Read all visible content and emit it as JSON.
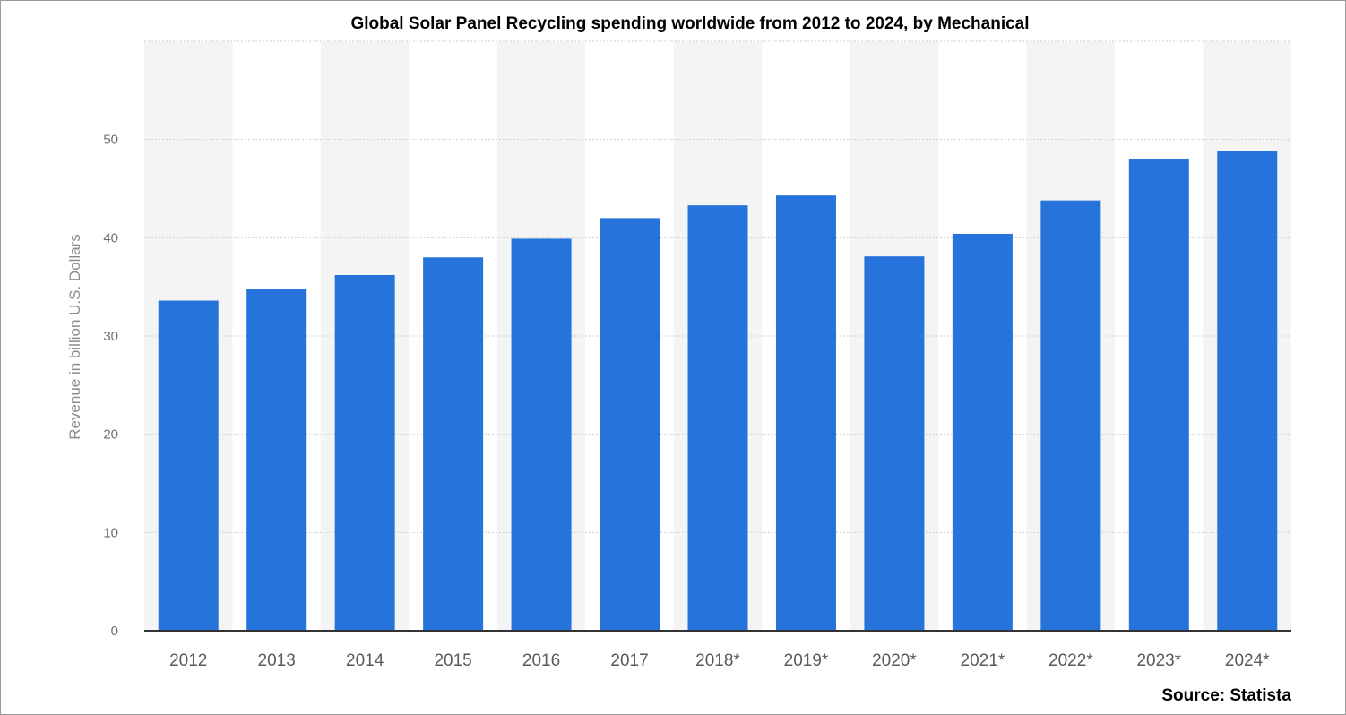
{
  "chart_data": {
    "type": "bar",
    "title": "Global  Solar Panel Recycling spending worldwide from 2012 to 2024, by Mechanical",
    "xlabel": "",
    "ylabel": "Revenue in billion U.S. Dollars",
    "categories": [
      "2012",
      "2013",
      "2014",
      "2015",
      "2016",
      "2017",
      "2018*",
      "2019*",
      "2020*",
      "2021*",
      "2022*",
      "2023*",
      "2024*"
    ],
    "values": [
      33.6,
      34.8,
      36.2,
      38.0,
      39.9,
      42.0,
      43.3,
      44.3,
      38.1,
      40.4,
      43.8,
      48.0,
      48.8
    ],
    "ylim": [
      0,
      60
    ],
    "yticks": [
      0,
      10,
      20,
      30,
      40,
      50
    ],
    "grid": true,
    "legend": "none",
    "bar_color": "#2673dc",
    "band_color": "#f4f4f4",
    "source": "Source: Statista"
  }
}
